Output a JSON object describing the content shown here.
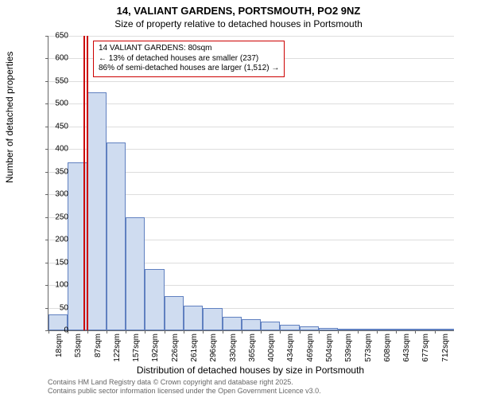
{
  "title_line1": "14, VALIANT GARDENS, PORTSMOUTH, PO2 9NZ",
  "title_line2": "Size of property relative to detached houses in Portsmouth",
  "y_axis_label": "Number of detached properties",
  "x_axis_label": "Distribution of detached houses by size in Portsmouth",
  "footer_line1": "Contains HM Land Registry data © Crown copyright and database right 2025.",
  "footer_line2": "Contains public sector information licensed under the Open Government Licence v3.0.",
  "chart": {
    "type": "histogram",
    "ylim": [
      0,
      650
    ],
    "ytick_step": 50,
    "bar_fill": "#cfdcf0",
    "bar_stroke": "#6080c0",
    "grid_color": "#dddddd",
    "background": "#ffffff",
    "marker_color": "#cc0000",
    "marker_x_index": 1.9,
    "x_categories": [
      "18sqm",
      "53sqm",
      "87sqm",
      "122sqm",
      "157sqm",
      "192sqm",
      "226sqm",
      "261sqm",
      "296sqm",
      "330sqm",
      "365sqm",
      "400sqm",
      "434sqm",
      "469sqm",
      "504sqm",
      "539sqm",
      "573sqm",
      "608sqm",
      "643sqm",
      "677sqm",
      "712sqm"
    ],
    "values": [
      35,
      370,
      525,
      415,
      250,
      135,
      75,
      55,
      50,
      30,
      25,
      20,
      12,
      8,
      6,
      4,
      3,
      3,
      2,
      2,
      2
    ],
    "annotation": {
      "line1": "14 VALIANT GARDENS: 80sqm",
      "line2": "← 13% of detached houses are smaller (237)",
      "line3": "86% of semi-detached houses are larger (1,512) →",
      "border_color": "#cc0000",
      "background": "#ffffff",
      "fontsize": 10
    }
  }
}
